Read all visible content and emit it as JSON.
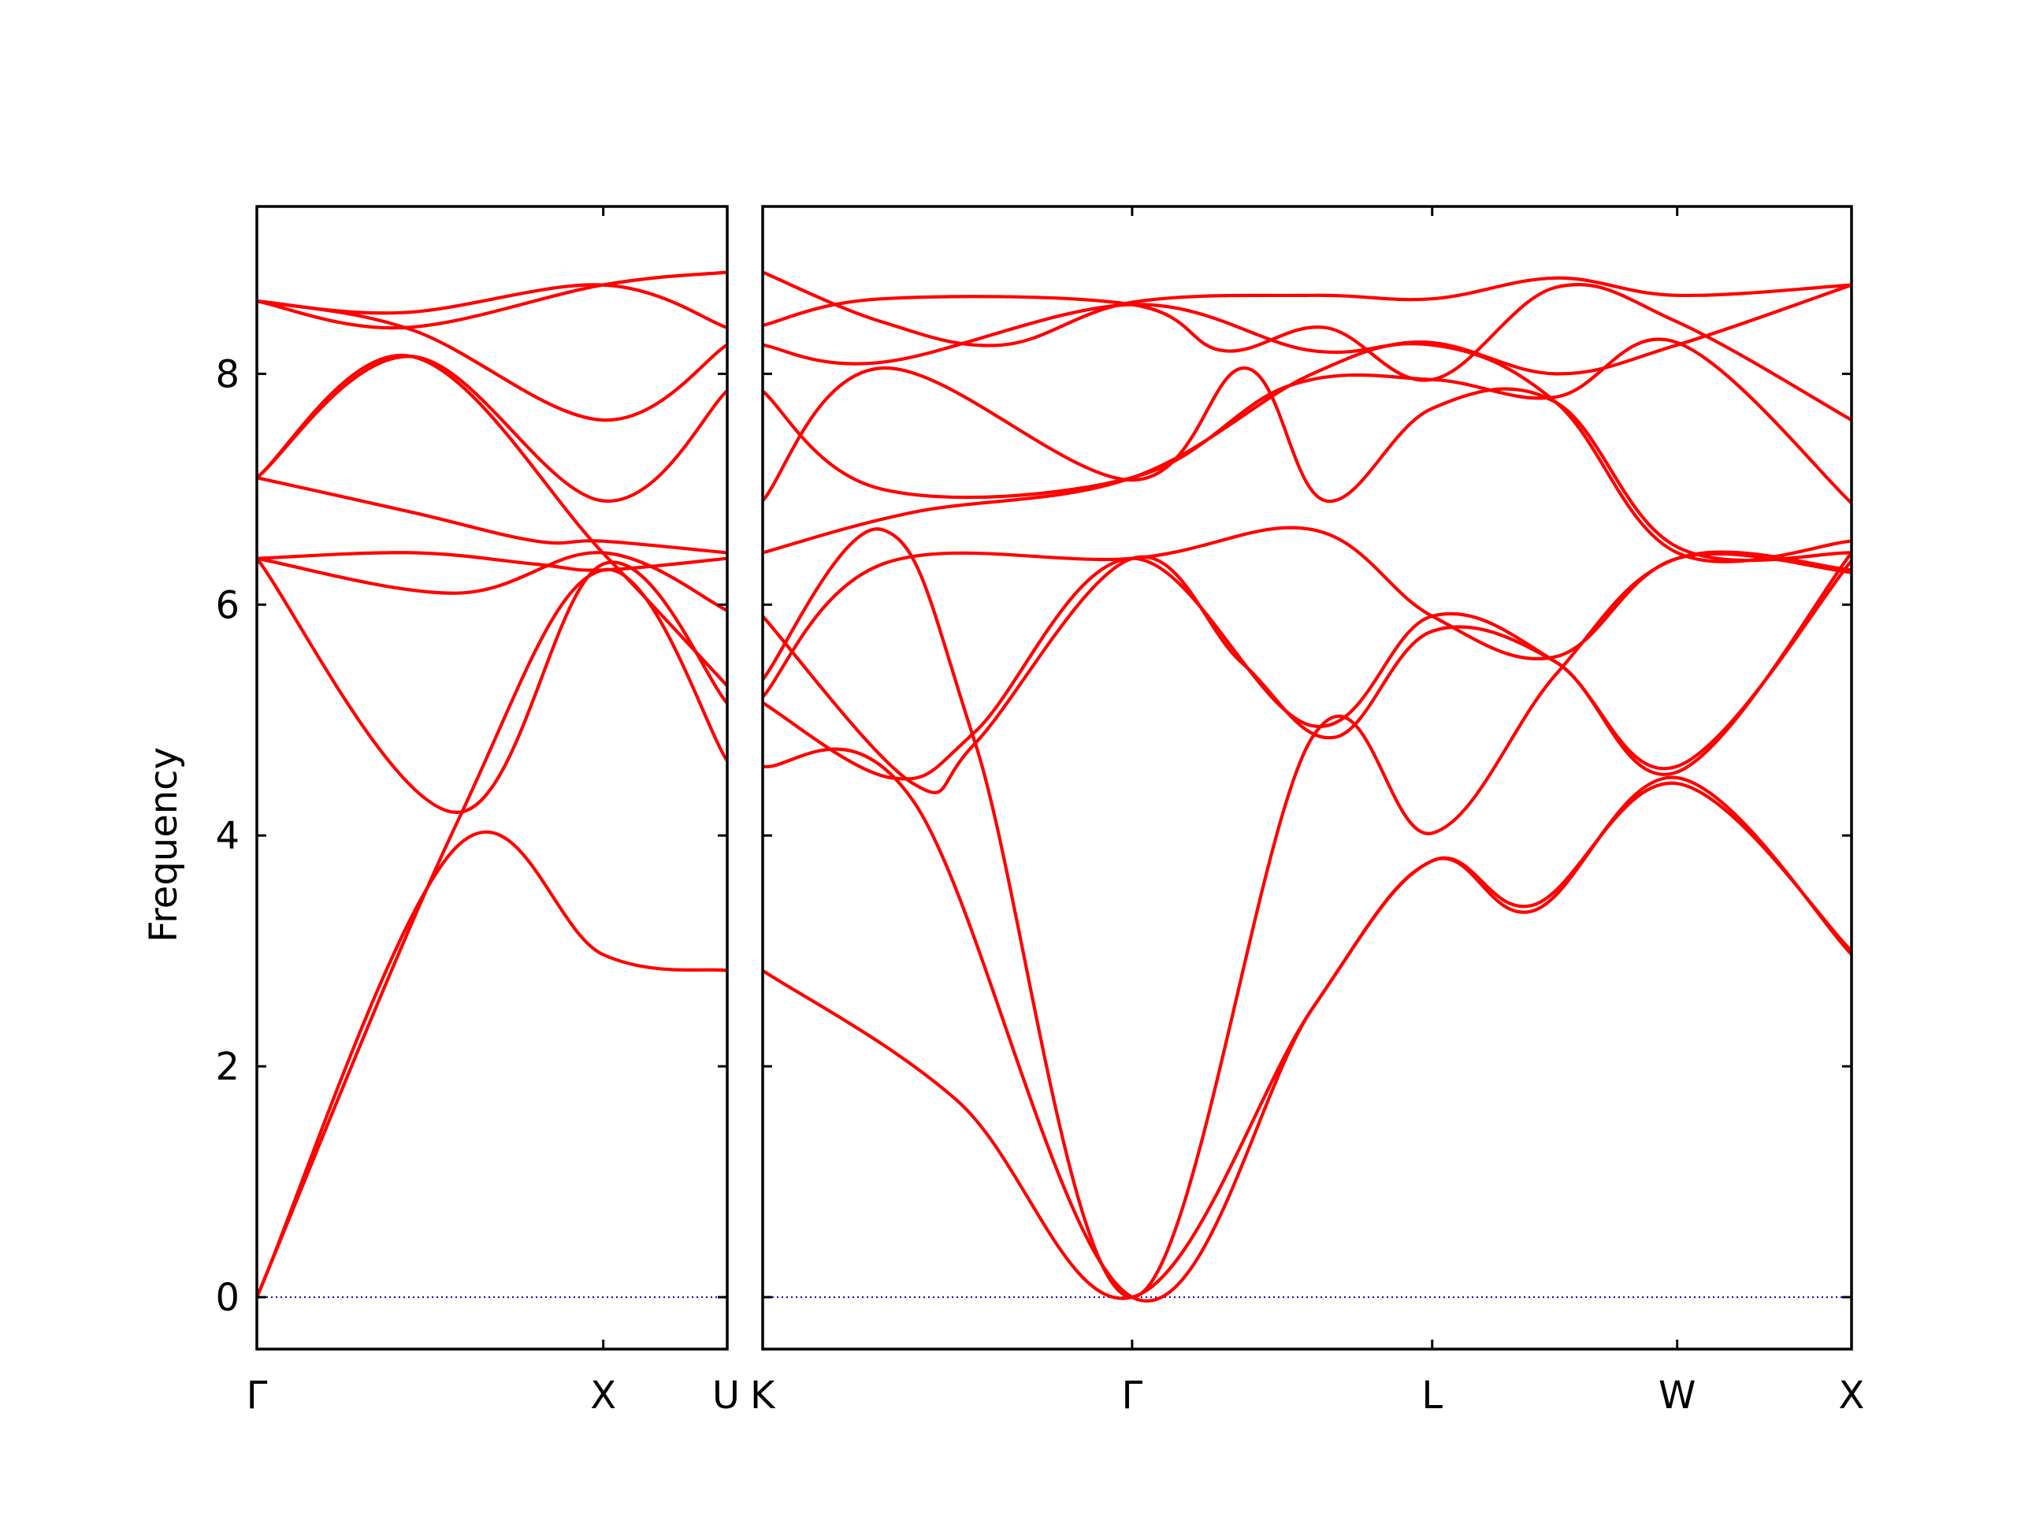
{
  "chart_data": {
    "type": "line",
    "ylabel": "Frequency",
    "ylim": [
      -0.45,
      9.45
    ],
    "yticks": [
      0,
      2,
      4,
      6,
      8
    ],
    "colors": {
      "band": "#ff0000",
      "zero_line": "#0000cc",
      "axes": "#000000"
    },
    "grid": false,
    "panels": [
      {
        "xlim": [
          0,
          1.0607
        ],
        "ticks": [
          {
            "x": 0,
            "label": "Γ"
          },
          {
            "x": 0.7812,
            "label": "X"
          },
          {
            "x": 1.0607,
            "label": "U"
          }
        ],
        "series": [
          {
            "x": [
              0,
              0.45,
              0.78,
              1.06
            ],
            "y": [
              0,
              3.9,
              2.97,
              2.83
            ]
          },
          {
            "x": [
              0,
              0.45,
              0.78,
              1.06
            ],
            "y": [
              0,
              4.1,
              6.3,
              4.65
            ]
          },
          {
            "x": [
              0,
              0.45,
              0.78,
              1.06
            ],
            "y": [
              6.4,
              4.2,
              6.35,
              5.15
            ]
          },
          {
            "x": [
              0,
              0.35,
              0.63,
              0.78,
              1.06
            ],
            "y": [
              6.4,
              6.45,
              6.35,
              6.3,
              6.4
            ]
          },
          {
            "x": [
              0,
              0.35,
              0.78,
              1.06
            ],
            "y": [
              7.1,
              8.15,
              6.45,
              5.3
            ]
          },
          {
            "x": [
              0,
              0.35,
              0.63,
              0.78,
              1.06
            ],
            "y": [
              7.1,
              6.8,
              6.55,
              6.55,
              6.45
            ]
          },
          {
            "x": [
              0,
              0.35,
              0.78,
              1.06
            ],
            "y": [
              7.1,
              8.15,
              6.9,
              7.85
            ]
          },
          {
            "x": [
              0,
              0.35,
              0.78,
              1.06
            ],
            "y": [
              8.63,
              8.38,
              7.6,
              8.25
            ]
          },
          {
            "x": [
              0,
              0.33,
              0.78,
              1.06
            ],
            "y": [
              8.63,
              8.4,
              8.77,
              8.88
            ]
          },
          {
            "x": [
              0,
              0.33,
              0.78,
              1.06
            ],
            "y": [
              8.63,
              8.53,
              8.77,
              8.4
            ]
          },
          {
            "x": [
              0,
              0.45,
              0.78,
              1.06
            ],
            "y": [
              6.4,
              6.1,
              6.45,
              5.95
            ]
          }
        ]
      },
      {
        "xlim": [
          1.0607,
          3.5157
        ],
        "ticks": [
          {
            "x": 1.0607,
            "label": "K"
          },
          {
            "x": 1.8937,
            "label": "Γ"
          },
          {
            "x": 2.5702,
            "label": "L"
          },
          {
            "x": 3.1226,
            "label": "W"
          },
          {
            "x": 3.5157,
            "label": "X"
          }
        ],
        "series": [
          {
            "x": [
              1.0607,
              1.5,
              1.8937,
              2.3,
              2.5702,
              2.8,
              3.1226,
              3.5157
            ],
            "y": [
              2.83,
              1.7,
              0,
              2.5,
              3.78,
              3.35,
              4.5,
              2.97
            ]
          },
          {
            "x": [
              1.0607,
              1.4,
              1.8937,
              2.3,
              2.5702,
              2.8,
              3.1226,
              3.5157
            ],
            "y": [
              4.6,
              4.3,
              0,
              2.5,
              3.78,
              3.4,
              4.45,
              3.0
            ]
          },
          {
            "x": [
              1.0607,
              1.33,
              1.54,
              1.8937,
              2.3,
              2.5702,
              2.85,
              3.1226,
              3.5157
            ],
            "y": [
              5.35,
              6.65,
              4.8,
              0,
              4.85,
              4.02,
              5.4,
              6.4,
              6.3
            ]
          },
          {
            "x": [
              1.0607,
              1.4,
              1.54,
              1.8937,
              2.14,
              2.35,
              2.5702,
              2.85,
              3.1226,
              3.5157
            ],
            "y": [
              5.9,
              4.45,
              4.8,
              6.4,
              5.5,
              4.85,
              5.77,
              5.5,
              4.55,
              6.45
            ]
          },
          {
            "x": [
              1.0607,
              1.35,
              1.54,
              1.8937,
              2.3,
              2.5702,
              2.85,
              3.1226,
              3.5157
            ],
            "y": [
              5.15,
              4.5,
              4.9,
              6.4,
              4.95,
              5.9,
              5.5,
              4.6,
              6.38
            ]
          },
          {
            "x": [
              1.0607,
              1.33,
              1.8937,
              2.3,
              2.5702,
              2.85,
              3.1226,
              3.5157
            ],
            "y": [
              5.2,
              6.35,
              6.4,
              6.65,
              5.9,
              5.55,
              6.4,
              6.28
            ]
          },
          {
            "x": [
              1.0607,
              1.4,
              1.8937,
              2.3,
              2.5702,
              2.85,
              3.1226,
              3.5157
            ],
            "y": [
              6.45,
              6.8,
              7.1,
              8.0,
              8.25,
              7.75,
              6.45,
              6.55
            ]
          },
          {
            "x": [
              1.0607,
              1.33,
              1.8937,
              2.15,
              2.33,
              2.5702,
              2.85,
              3.1226,
              3.5157
            ],
            "y": [
              6.9,
              8.05,
              7.08,
              8.05,
              6.9,
              7.7,
              7.75,
              6.5,
              6.45
            ]
          },
          {
            "x": [
              1.0607,
              1.33,
              1.8937,
              2.25,
              2.5702,
              2.85,
              3.1226,
              3.5157
            ],
            "y": [
              7.85,
              7.0,
              7.1,
              7.9,
              7.95,
              7.8,
              8.27,
              6.88
            ]
          },
          {
            "x": [
              1.0607,
              1.33,
              1.8937,
              2.3,
              2.5702,
              2.85,
              3.1226,
              3.5157
            ],
            "y": [
              8.25,
              8.1,
              8.6,
              8.2,
              8.27,
              8.0,
              8.25,
              8.77
            ]
          },
          {
            "x": [
              1.0607,
              1.33,
              1.8937,
              2.1,
              2.33,
              2.5702,
              2.85,
              3.1226,
              3.5157
            ],
            "y": [
              8.42,
              8.65,
              8.6,
              8.2,
              8.4,
              7.95,
              8.75,
              8.45,
              7.6
            ]
          },
          {
            "x": [
              1.0607,
              1.33,
              1.6,
              1.8937,
              2.3,
              2.5702,
              2.85,
              3.1226,
              3.5157
            ],
            "y": [
              8.88,
              8.45,
              8.25,
              8.62,
              8.68,
              8.65,
              8.83,
              8.68,
              8.77
            ]
          }
        ]
      }
    ]
  }
}
